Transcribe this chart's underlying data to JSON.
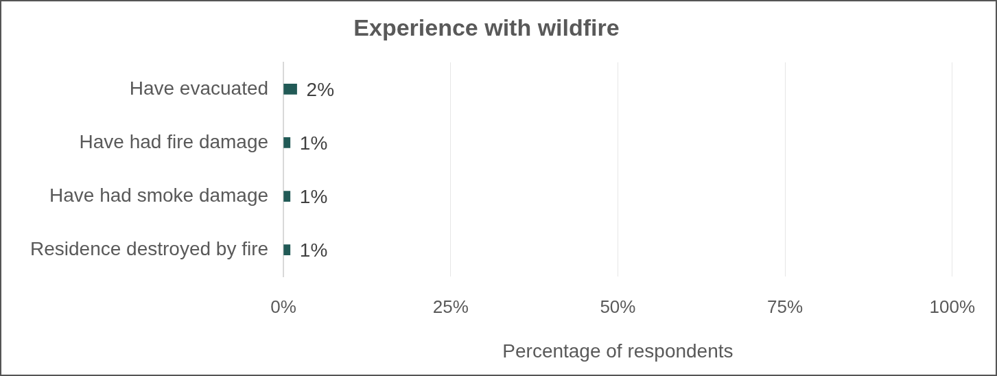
{
  "chart_data": {
    "type": "bar",
    "orientation": "horizontal",
    "title": "Experience with wildfire",
    "xlabel": "Percentage of respondents",
    "categories": [
      "Have evacuated",
      "Have had fire damage",
      "Have had smoke damage",
      "Residence destroyed by fire"
    ],
    "values": [
      2,
      1,
      1,
      1
    ],
    "value_labels": [
      "2%",
      "1%",
      "1%",
      "1%"
    ],
    "color": "#215a56",
    "xlim": [
      0,
      100
    ],
    "xticks": [
      {
        "value": 0,
        "label": "0%"
      },
      {
        "value": 25,
        "label": "25%"
      },
      {
        "value": 50,
        "label": "50%"
      },
      {
        "value": 75,
        "label": "75%"
      },
      {
        "value": 100,
        "label": "100%"
      }
    ],
    "grid": "x",
    "legend": false
  }
}
